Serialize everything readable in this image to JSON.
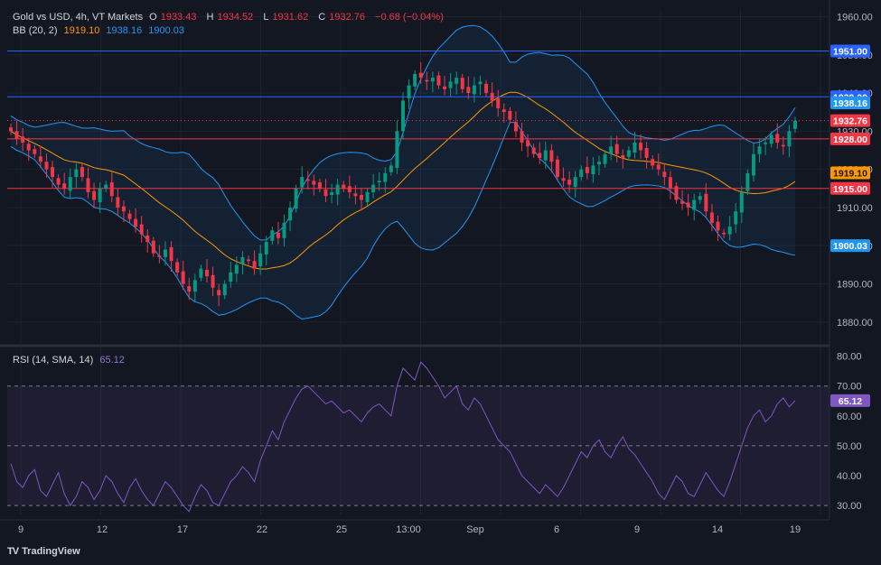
{
  "header": {
    "symbol": "Gold vs USD, 4h, VT Markets",
    "open_label": "O",
    "open": "1933.43",
    "high_label": "H",
    "high": "1934.52",
    "low_label": "L",
    "low": "1931.62",
    "close_label": "C",
    "close": "1932.76",
    "change": "−0.68 (−0.04%)"
  },
  "bb": {
    "label": "BB (20, 2)",
    "basis": "1919.10",
    "upper": "1938.16",
    "lower": "1900.03"
  },
  "rsi": {
    "label": "RSI (14, SMA, 14)",
    "value": "65.12"
  },
  "brand": {
    "name": "TradingView"
  },
  "colors": {
    "bg": "#131722",
    "up": "#089981",
    "down": "#f23645",
    "basis": "#ff9800",
    "band": "#2196f3",
    "rsi": "#7e57c2",
    "hline_blue": "#2962ff",
    "hline_red": "#f23645"
  },
  "chart_data": [
    {
      "type": "candlestick",
      "title": "Gold vs USD, 4h",
      "ylim": [
        1875,
        1962
      ],
      "y_ticks": [
        1880,
        1890,
        1900,
        1910,
        1920,
        1930,
        1940,
        1950,
        1960
      ],
      "x_tick_labels": [
        "9",
        "12",
        "17",
        "22",
        "25",
        "13:00",
        "Sep",
        "6",
        "9",
        "14",
        "19"
      ],
      "close_series_approx": [
        1930,
        1928,
        1927,
        1925,
        1924,
        1922,
        1920,
        1918,
        1916,
        1915,
        1918,
        1920,
        1918,
        1914,
        1912,
        1915,
        1916,
        1913,
        1910,
        1909,
        1907,
        1905,
        1903,
        1901,
        1898,
        1897,
        1899,
        1896,
        1893,
        1890,
        1888,
        1891,
        1894,
        1892,
        1889,
        1887,
        1890,
        1893,
        1895,
        1897,
        1896,
        1894,
        1898,
        1901,
        1904,
        1902,
        1906,
        1910,
        1915,
        1918,
        1917,
        1916,
        1915,
        1913,
        1914,
        1916,
        1915,
        1914,
        1913,
        1912,
        1914,
        1916,
        1917,
        1919,
        1921,
        1930,
        1938,
        1942,
        1945,
        1944,
        1943,
        1944,
        1942,
        1941,
        1943,
        1944,
        1941,
        1940,
        1942,
        1943,
        1940,
        1938,
        1936,
        1935,
        1933,
        1930,
        1927,
        1926,
        1924,
        1923,
        1925,
        1922,
        1918,
        1917,
        1916,
        1918,
        1920,
        1919,
        1921,
        1922,
        1924,
        1926,
        1924,
        1923,
        1925,
        1927,
        1925,
        1923,
        1921,
        1920,
        1918,
        1915,
        1912,
        1911,
        1910,
        1912,
        1913,
        1909,
        1906,
        1904,
        1903,
        1905,
        1909,
        1914,
        1919,
        1924,
        1926,
        1927,
        1929,
        1927,
        1926,
        1930,
        1932.76
      ],
      "hlines": [
        {
          "value": 1951.0,
          "label": "1951.00",
          "color": "#2962ff"
        },
        {
          "value": 1939.0,
          "label": "1939.00",
          "color": "#2962ff"
        },
        {
          "value": 1928.0,
          "label": "1928.00",
          "color": "#f23645"
        },
        {
          "value": 1915.0,
          "label": "1915.00",
          "color": "#f23645"
        }
      ],
      "price_tags": [
        {
          "value": 1938.16,
          "label": "1938.16",
          "color": "#2196f3"
        },
        {
          "value": 1932.76,
          "label": "1932.76",
          "color": "#f23645"
        },
        {
          "value": 1919.1,
          "label": "1919.10",
          "color": "#ff9800"
        },
        {
          "value": 1900.03,
          "label": "1900.03",
          "color": "#2196f3"
        }
      ],
      "indicators": [
        "Bollinger Bands (20, 2)"
      ]
    },
    {
      "type": "line",
      "title": "RSI (14, SMA, 14)",
      "ylim": [
        27,
        82
      ],
      "y_ticks": [
        30,
        40,
        50,
        60,
        70,
        80
      ],
      "band": [
        30,
        70
      ],
      "midline": 50,
      "values_approx": [
        44,
        38,
        36,
        40,
        42,
        35,
        33,
        37,
        41,
        34,
        30,
        33,
        38,
        36,
        32,
        35,
        40,
        38,
        34,
        31,
        36,
        39,
        35,
        32,
        30,
        34,
        38,
        36,
        33,
        30,
        28,
        33,
        37,
        35,
        31,
        30,
        34,
        38,
        40,
        43,
        41,
        38,
        45,
        50,
        55,
        52,
        58,
        62,
        66,
        69,
        70,
        68,
        66,
        64,
        65,
        63,
        61,
        62,
        60,
        58,
        61,
        63,
        64,
        62,
        60,
        70,
        76,
        74,
        72,
        78,
        76,
        73,
        70,
        66,
        68,
        70,
        64,
        62,
        66,
        64,
        60,
        56,
        52,
        50,
        48,
        44,
        40,
        38,
        36,
        34,
        37,
        35,
        33,
        36,
        40,
        44,
        48,
        46,
        50,
        52,
        48,
        46,
        50,
        53,
        49,
        47,
        44,
        41,
        38,
        34,
        32,
        36,
        40,
        38,
        34,
        33,
        37,
        41,
        38,
        35,
        33,
        38,
        44,
        50,
        56,
        60,
        62,
        58,
        60,
        64,
        66,
        63,
        65.12
      ]
    }
  ]
}
